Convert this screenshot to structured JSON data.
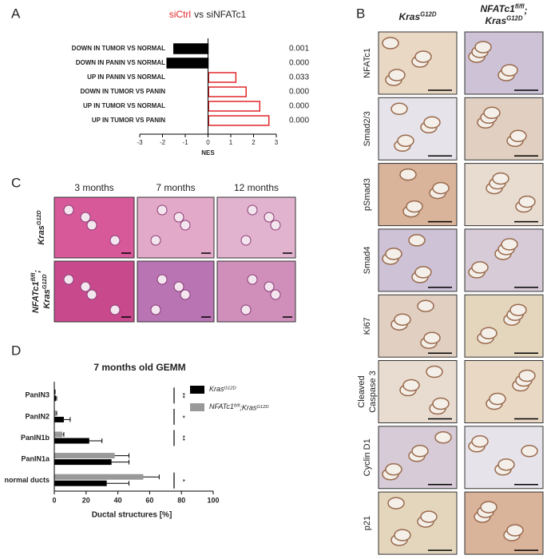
{
  "panels": {
    "a": "A",
    "b": "B",
    "c": "C",
    "d": "D"
  },
  "chart_data": [
    {
      "type": "hbar",
      "title": [
        "siCtrl",
        "vs siNFATc1"
      ],
      "title_colors": [
        "#e0262a",
        "#222222"
      ],
      "categories": [
        "DOWN IN TUMOR VS NORMAL",
        "DOWN IN PANIN VS NORMAL",
        "UP IN PANIN VS NORMAL",
        "DOWN IN TUMOR VS PANIN",
        "UP IN TUMOR VS NORMAL",
        "UP IN TUMOR VS PANIN"
      ],
      "values": [
        -1.5,
        -1.8,
        1.25,
        1.7,
        2.3,
        2.7
      ],
      "colors": [
        "#000000",
        "#000000",
        "#e0262a",
        "#e0262a",
        "#e0262a",
        "#e0262a"
      ],
      "bar_styles": [
        "filled",
        "filled",
        "outline",
        "outline",
        "outline",
        "outline"
      ],
      "annotations": [
        "0.001",
        "0.000",
        "0.033",
        "0.000",
        "0.000",
        "0.000"
      ],
      "xlabel": "NES",
      "xlim": [
        -3,
        3
      ],
      "xticks": [
        -3,
        -2,
        -1,
        0,
        1,
        2,
        3
      ]
    },
    {
      "type": "grouped_hbar",
      "title": "7 months old GEMM",
      "categories": [
        "PanIN3",
        "PanIN2",
        "PanIN1b",
        "PanIN1a",
        "normal ducts"
      ],
      "series": [
        {
          "name": [
            "NFATc1",
            "fl/fl",
            ";Kras",
            "G12D"
          ],
          "color": "#999999",
          "values": [
            0.3,
            1,
            5,
            38,
            56
          ],
          "errors": [
            0.2,
            0.5,
            1,
            9,
            10
          ]
        },
        {
          "name": [
            "Kras",
            "G12D"
          ],
          "color": "#000000",
          "values": [
            1,
            6,
            22,
            36,
            33
          ],
          "errors": [
            0.5,
            4,
            8,
            11,
            14
          ]
        }
      ],
      "legend_order": [
        1,
        0
      ],
      "significance": [
        "**",
        "*",
        "**",
        null,
        "*"
      ],
      "xlabel": "Ductal structures [%]",
      "xlim": [
        0,
        100
      ],
      "xticks": [
        0,
        20,
        40,
        60,
        80,
        100
      ]
    }
  ],
  "panel_b": {
    "columns": [
      [
        [
          "Kras",
          "G12D"
        ]
      ],
      [
        [
          "NFATc1",
          "fl/fl",
          ";"
        ],
        [
          "Kras",
          "G12D"
        ]
      ]
    ],
    "rows": [
      [
        "NFATc1"
      ],
      [
        "Smad2/3"
      ],
      [
        "pSmad3"
      ],
      [
        "Smad4"
      ],
      [
        "Ki67"
      ],
      [
        "Cleaved",
        "Caspase 3"
      ],
      [
        "Cyclin D1"
      ],
      [
        "p21"
      ]
    ]
  },
  "panel_c": {
    "columns": [
      "3 months",
      "7 months",
      "12 months"
    ],
    "rows": [
      [
        [
          "Kras",
          "G12D"
        ]
      ],
      [
        [
          "NFATc1",
          "fl/fl",
          ";"
        ],
        [
          "Kras",
          "G12D"
        ]
      ]
    ]
  }
}
